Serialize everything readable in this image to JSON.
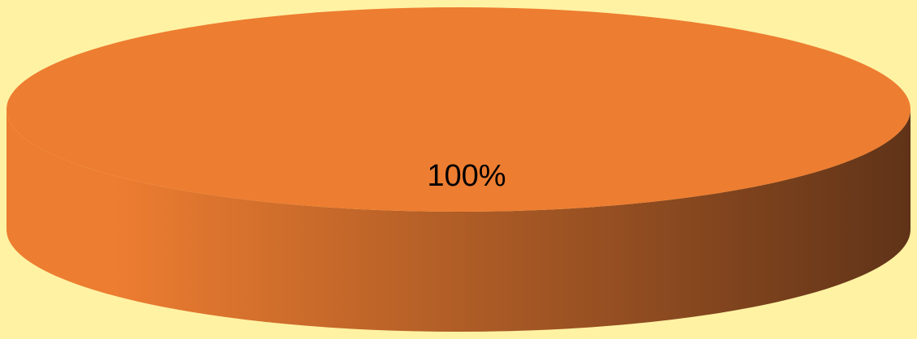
{
  "chart_data": {
    "type": "pie",
    "style": "3d",
    "slices": [
      {
        "label": "",
        "value": 100,
        "display": "100%",
        "color": "#ED7D31"
      }
    ],
    "title": "",
    "legend": "none",
    "background_color": "#FFF2A3",
    "side_shadow_color": "#603318"
  }
}
